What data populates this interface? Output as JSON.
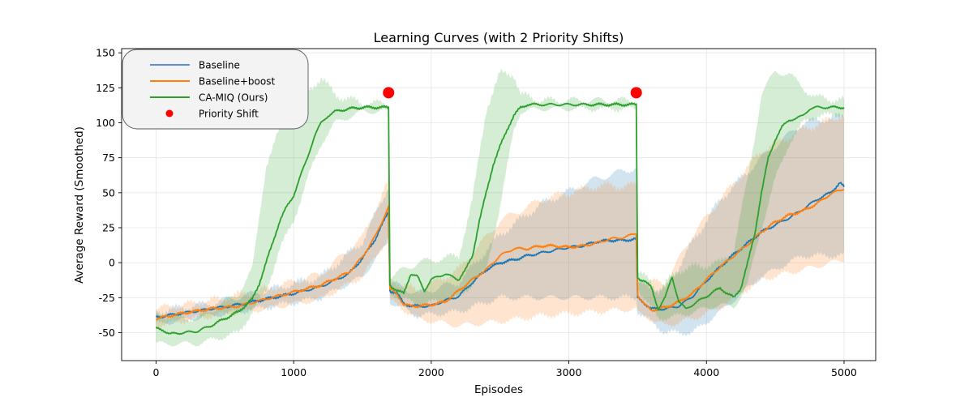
{
  "chart_data": {
    "type": "line",
    "title": "Learning Curves (with 2 Priority Shifts)",
    "xlabel": "Episodes",
    "ylabel": "Average Reward (Smoothed)",
    "xlim": [
      -250,
      5230
    ],
    "ylim": [
      -70,
      153
    ],
    "x_ticks": [
      0,
      1000,
      2000,
      3000,
      4000,
      5000
    ],
    "y_ticks": [
      -50,
      -25,
      0,
      25,
      50,
      75,
      100,
      125,
      150
    ],
    "grid": true,
    "legend_position": "top-left",
    "series": [
      {
        "name": "Baseline",
        "color": "#1f77b4",
        "legend_color": "#5b8fd9",
        "points": [
          [
            0,
            -39
          ],
          [
            200,
            -36
          ],
          [
            400,
            -33
          ],
          [
            600,
            -30
          ],
          [
            800,
            -26
          ],
          [
            1000,
            -22
          ],
          [
            1200,
            -17
          ],
          [
            1400,
            -8
          ],
          [
            1500,
            3
          ],
          [
            1600,
            18
          ],
          [
            1690,
            37
          ],
          [
            1700,
            -20
          ],
          [
            1750,
            -22
          ],
          [
            1800,
            -29
          ],
          [
            1850,
            -31
          ],
          [
            1900,
            -31
          ],
          [
            2000,
            -31
          ],
          [
            2100,
            -27
          ],
          [
            2200,
            -24
          ],
          [
            2300,
            -14
          ],
          [
            2400,
            -5
          ],
          [
            2500,
            0
          ],
          [
            2600,
            2
          ],
          [
            2700,
            5
          ],
          [
            2800,
            7
          ],
          [
            2900,
            9
          ],
          [
            3000,
            11
          ],
          [
            3100,
            12
          ],
          [
            3200,
            15
          ],
          [
            3300,
            16
          ],
          [
            3400,
            16
          ],
          [
            3490,
            17
          ],
          [
            3500,
            -25
          ],
          [
            3550,
            -29
          ],
          [
            3600,
            -33
          ],
          [
            3700,
            -33
          ],
          [
            3800,
            -31
          ],
          [
            3900,
            -24
          ],
          [
            4000,
            -13
          ],
          [
            4100,
            -3
          ],
          [
            4200,
            6
          ],
          [
            4300,
            14
          ],
          [
            4400,
            22
          ],
          [
            4500,
            27
          ],
          [
            4600,
            32
          ],
          [
            4700,
            38
          ],
          [
            4800,
            45
          ],
          [
            4900,
            50
          ],
          [
            4970,
            57
          ],
          [
            5000,
            54
          ]
        ],
        "band": [
          [
            0,
            -44,
            -35
          ],
          [
            400,
            -38,
            -29
          ],
          [
            800,
            -32,
            -20
          ],
          [
            1200,
            -25,
            -10
          ],
          [
            1500,
            -10,
            15
          ],
          [
            1690,
            15,
            55
          ],
          [
            1700,
            -28,
            -14
          ],
          [
            1900,
            -38,
            -22
          ],
          [
            2200,
            -35,
            -14
          ],
          [
            2500,
            -25,
            20
          ],
          [
            2800,
            -25,
            42
          ],
          [
            3200,
            -25,
            60
          ],
          [
            3490,
            -25,
            68
          ],
          [
            3500,
            -35,
            -15
          ],
          [
            3700,
            -50,
            -20
          ],
          [
            3900,
            -50,
            15
          ],
          [
            4100,
            -35,
            45
          ],
          [
            4400,
            -10,
            75
          ],
          [
            4700,
            5,
            100
          ],
          [
            5000,
            5,
            105
          ]
        ]
      },
      {
        "name": "Baseline+boost",
        "color": "#ff7f0e",
        "legend_color": "#ff7f0e",
        "points": [
          [
            0,
            -40
          ],
          [
            200,
            -36
          ],
          [
            400,
            -33
          ],
          [
            600,
            -31
          ],
          [
            800,
            -26
          ],
          [
            1000,
            -21
          ],
          [
            1200,
            -16
          ],
          [
            1400,
            -7
          ],
          [
            1500,
            4
          ],
          [
            1600,
            20
          ],
          [
            1690,
            40
          ],
          [
            1700,
            -19
          ],
          [
            1750,
            -22
          ],
          [
            1800,
            -30
          ],
          [
            1850,
            -31
          ],
          [
            1900,
            -31
          ],
          [
            2000,
            -30
          ],
          [
            2100,
            -28
          ],
          [
            2200,
            -20
          ],
          [
            2300,
            -12
          ],
          [
            2400,
            -5
          ],
          [
            2500,
            5
          ],
          [
            2600,
            10
          ],
          [
            2700,
            10
          ],
          [
            2800,
            12
          ],
          [
            2900,
            12
          ],
          [
            3000,
            11
          ],
          [
            3100,
            12
          ],
          [
            3200,
            14
          ],
          [
            3300,
            17
          ],
          [
            3400,
            18
          ],
          [
            3490,
            21
          ],
          [
            3500,
            -23
          ],
          [
            3550,
            -30
          ],
          [
            3600,
            -34
          ],
          [
            3700,
            -32
          ],
          [
            3800,
            -28
          ],
          [
            3900,
            -22
          ],
          [
            4000,
            -12
          ],
          [
            4100,
            -3
          ],
          [
            4200,
            5
          ],
          [
            4300,
            13
          ],
          [
            4400,
            22
          ],
          [
            4500,
            29
          ],
          [
            4600,
            34
          ],
          [
            4700,
            37
          ],
          [
            4800,
            42
          ],
          [
            4900,
            49
          ],
          [
            5000,
            53
          ]
        ],
        "band": [
          [
            0,
            -45,
            -33
          ],
          [
            400,
            -38,
            -27
          ],
          [
            800,
            -33,
            -19
          ],
          [
            1200,
            -26,
            -8
          ],
          [
            1500,
            -10,
            18
          ],
          [
            1690,
            18,
            58
          ],
          [
            1700,
            -27,
            -12
          ],
          [
            1900,
            -40,
            -20
          ],
          [
            2200,
            -45,
            -5
          ],
          [
            2500,
            -42,
            30
          ],
          [
            2800,
            -38,
            45
          ],
          [
            3200,
            -35,
            55
          ],
          [
            3490,
            -33,
            55
          ],
          [
            3500,
            -36,
            -12
          ],
          [
            3700,
            -45,
            -15
          ],
          [
            3900,
            -40,
            20
          ],
          [
            4100,
            -32,
            45
          ],
          [
            4400,
            -12,
            80
          ],
          [
            4700,
            -5,
            95
          ],
          [
            5000,
            2,
            106
          ]
        ]
      },
      {
        "name": "CA-MIQ (Ours)",
        "color": "#2ca02c",
        "legend_color": "#2ca02c",
        "points": [
          [
            0,
            -47
          ],
          [
            50,
            -48
          ],
          [
            100,
            -51
          ],
          [
            200,
            -50
          ],
          [
            300,
            -49
          ],
          [
            400,
            -45
          ],
          [
            500,
            -40
          ],
          [
            600,
            -35
          ],
          [
            700,
            -26
          ],
          [
            750,
            -15
          ],
          [
            800,
            0
          ],
          [
            850,
            15
          ],
          [
            900,
            30
          ],
          [
            950,
            40
          ],
          [
            1000,
            48
          ],
          [
            1050,
            62
          ],
          [
            1100,
            75
          ],
          [
            1150,
            90
          ],
          [
            1200,
            100
          ],
          [
            1250,
            105
          ],
          [
            1300,
            108
          ],
          [
            1400,
            110
          ],
          [
            1500,
            111
          ],
          [
            1690,
            111
          ],
          [
            1700,
            -16
          ],
          [
            1750,
            -20
          ],
          [
            1800,
            -22
          ],
          [
            1850,
            -8
          ],
          [
            1900,
            -10
          ],
          [
            1950,
            -20
          ],
          [
            2000,
            -12
          ],
          [
            2100,
            -8
          ],
          [
            2200,
            -12
          ],
          [
            2250,
            -5
          ],
          [
            2300,
            5
          ],
          [
            2350,
            30
          ],
          [
            2400,
            50
          ],
          [
            2450,
            70
          ],
          [
            2500,
            83
          ],
          [
            2550,
            95
          ],
          [
            2600,
            105
          ],
          [
            2650,
            111
          ],
          [
            2700,
            113
          ],
          [
            3490,
            113
          ],
          [
            3500,
            -11
          ],
          [
            3550,
            -13
          ],
          [
            3600,
            -18
          ],
          [
            3650,
            -33
          ],
          [
            3700,
            -25
          ],
          [
            3750,
            -10
          ],
          [
            3800,
            -28
          ],
          [
            3850,
            -33
          ],
          [
            3900,
            -30
          ],
          [
            4000,
            -24
          ],
          [
            4100,
            -18
          ],
          [
            4150,
            -22
          ],
          [
            4200,
            -25
          ],
          [
            4250,
            -18
          ],
          [
            4300,
            0
          ],
          [
            4350,
            20
          ],
          [
            4400,
            50
          ],
          [
            4450,
            75
          ],
          [
            4500,
            88
          ],
          [
            4550,
            97
          ],
          [
            4600,
            102
          ],
          [
            4650,
            103
          ],
          [
            4700,
            105
          ],
          [
            4750,
            110
          ],
          [
            4800,
            111
          ],
          [
            5000,
            111
          ]
        ],
        "band": [
          [
            0,
            -58,
            -37
          ],
          [
            300,
            -58,
            -40
          ],
          [
            600,
            -50,
            -22
          ],
          [
            700,
            -35,
            -5
          ],
          [
            800,
            -20,
            70
          ],
          [
            900,
            10,
            95
          ],
          [
            1000,
            30,
            103
          ],
          [
            1100,
            60,
            123
          ],
          [
            1200,
            85,
            132
          ],
          [
            1300,
            100,
            120
          ],
          [
            1500,
            108,
            114
          ],
          [
            1690,
            108,
            114
          ],
          [
            1700,
            -22,
            -10
          ],
          [
            1900,
            -30,
            0
          ],
          [
            2200,
            -25,
            5
          ],
          [
            2300,
            -15,
            45
          ],
          [
            2400,
            -5,
            110
          ],
          [
            2500,
            40,
            135
          ],
          [
            2600,
            95,
            135
          ],
          [
            2650,
            108,
            120
          ],
          [
            2800,
            110,
            116
          ],
          [
            3490,
            110,
            116
          ],
          [
            3500,
            -18,
            -5
          ],
          [
            3650,
            -40,
            -20
          ],
          [
            3800,
            -38,
            -5
          ],
          [
            4100,
            -30,
            0
          ],
          [
            4200,
            -32,
            10
          ],
          [
            4300,
            -15,
            60
          ],
          [
            4400,
            25,
            120
          ],
          [
            4500,
            60,
            137
          ],
          [
            4600,
            85,
            135
          ],
          [
            4700,
            100,
            125
          ],
          [
            4800,
            105,
            118
          ],
          [
            5000,
            106,
            116
          ]
        ]
      }
    ],
    "priority_shifts": {
      "name": "Priority Shift",
      "color": "#ff0000",
      "points": [
        [
          1690,
          121.5
        ],
        [
          3490,
          121.5
        ]
      ]
    }
  }
}
